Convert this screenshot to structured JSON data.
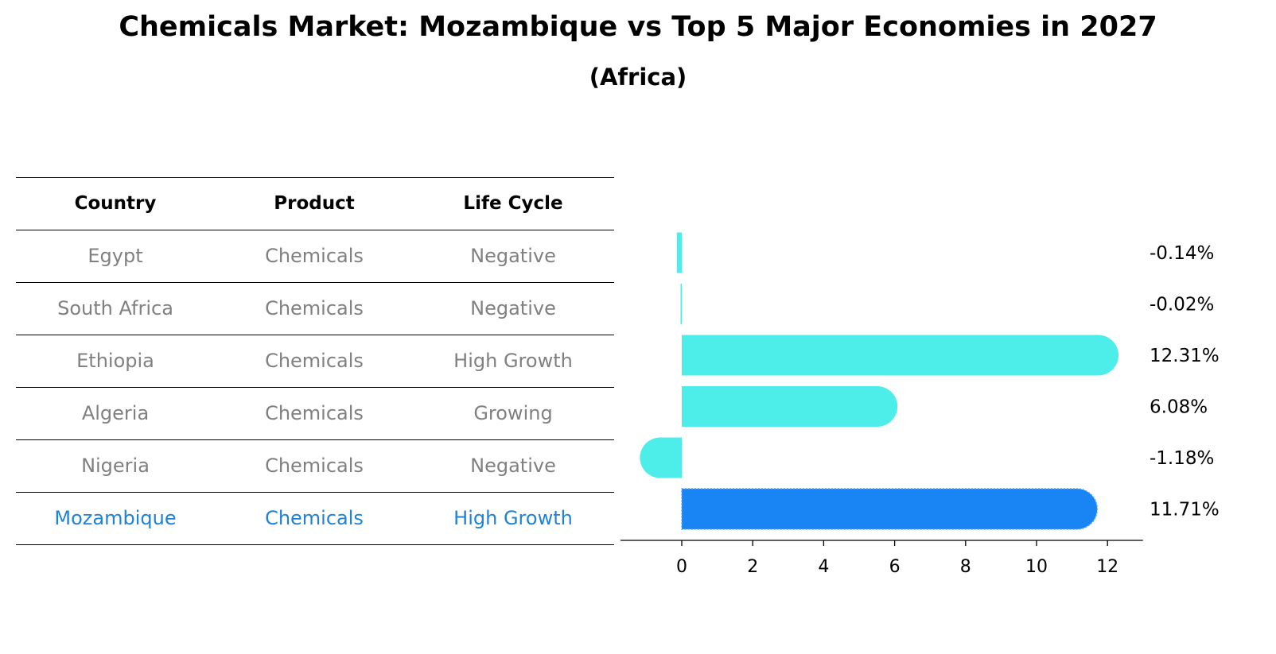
{
  "title": "Chemicals Market: Mozambique vs Top 5 Major Economies in 2027",
  "subtitle": "(Africa)",
  "table": {
    "headers": [
      "Country",
      "Product",
      "Life Cycle"
    ],
    "rows": [
      [
        "Egypt",
        "Chemicals",
        "Negative"
      ],
      [
        "South Africa",
        "Chemicals",
        "Negative"
      ],
      [
        "Ethiopia",
        "Chemicals",
        "High Growth"
      ],
      [
        "Algeria",
        "Chemicals",
        "Growing"
      ],
      [
        "Nigeria",
        "Chemicals",
        "Negative"
      ],
      [
        "Mozambique",
        "Chemicals",
        "High Growth"
      ]
    ],
    "highlight_row": 5
  },
  "colors": {
    "bar": "#4deeea",
    "highlight_bar": "#1985f5",
    "highlight_text": "#1f82d6",
    "muted_text": "#808080"
  },
  "chart_data": {
    "type": "bar",
    "orientation": "horizontal",
    "categories": [
      "Egypt",
      "South Africa",
      "Ethiopia",
      "Algeria",
      "Nigeria",
      "Mozambique"
    ],
    "values": [
      -0.14,
      -0.02,
      12.31,
      6.08,
      -1.18,
      11.71
    ],
    "value_labels": [
      "-0.14%",
      "-0.02%",
      "12.31%",
      "6.08%",
      "-1.18%",
      "11.71%"
    ],
    "highlight_index": 5,
    "xlim": [
      -1.9,
      13
    ],
    "xticks": [
      0,
      2,
      4,
      6,
      8,
      10,
      12
    ],
    "xlabel": "",
    "ylabel": ""
  }
}
